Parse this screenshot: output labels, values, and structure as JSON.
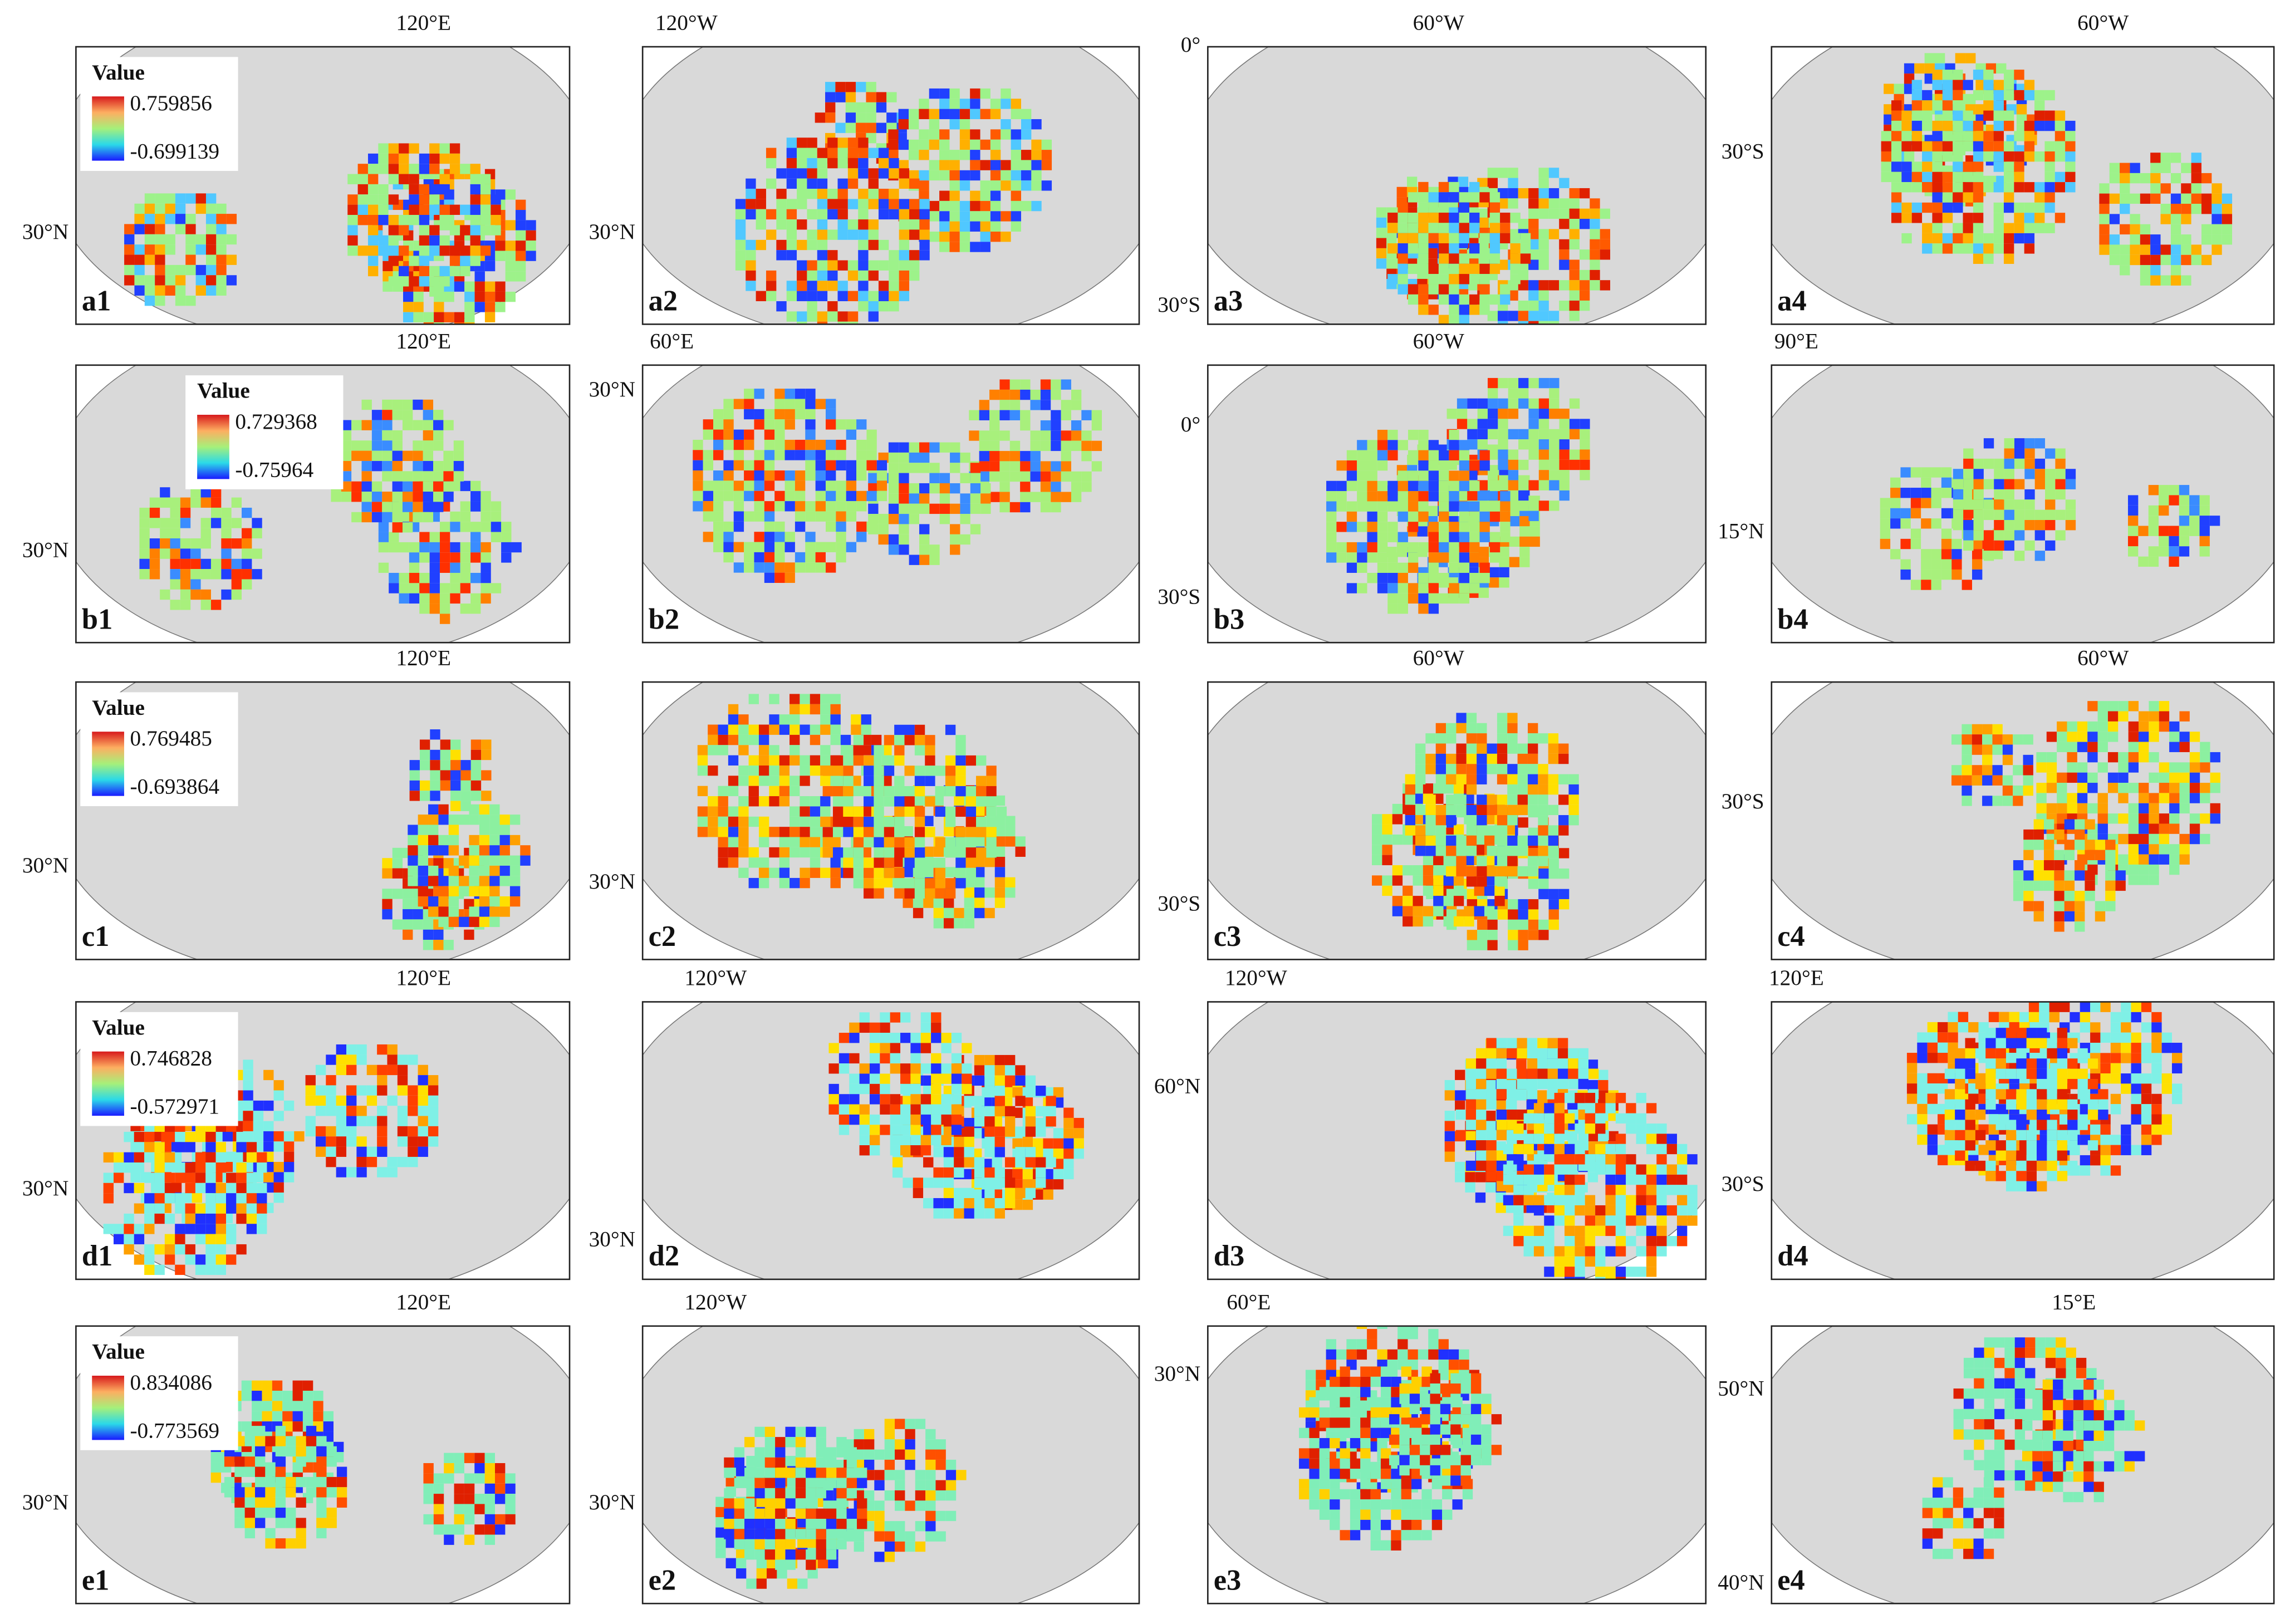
{
  "panels": [
    {
      "label": "a1",
      "top_label": "120°E",
      "side_labels": [
        "30°N"
      ],
      "legend": {
        "title": "Value",
        "max": "0.759856",
        "min": "-0.699139"
      }
    },
    {
      "label": "a2",
      "top_label": "120°W",
      "side_labels": [
        "30°N"
      ]
    },
    {
      "label": "a3",
      "top_label": "60°W",
      "side_labels": [
        "0°",
        "30°S"
      ]
    },
    {
      "label": "a4",
      "top_label": "60°W",
      "side_labels": [
        "30°S"
      ]
    },
    {
      "label": "b1",
      "top_label": "120°E",
      "side_labels": [
        "30°N"
      ],
      "legend": {
        "title": "Value",
        "max": "0.729368",
        "min": "-0.75964"
      }
    },
    {
      "label": "b2",
      "top_label": "60°E",
      "side_labels": [
        "30°N"
      ]
    },
    {
      "label": "b3",
      "top_label": "60°W",
      "side_labels": [
        "0°",
        "30°S"
      ]
    },
    {
      "label": "b4",
      "top_label": "90°E",
      "side_labels": [
        "15°N"
      ]
    },
    {
      "label": "c1",
      "top_label": "120°E",
      "side_labels": [
        "30°N"
      ],
      "legend": {
        "title": "Value",
        "max": "0.769485",
        "min": "-0.693864"
      }
    },
    {
      "label": "c2",
      "side_labels": [
        "30°N"
      ]
    },
    {
      "label": "c3",
      "top_label": "60°W",
      "side_labels": [
        "30°S"
      ]
    },
    {
      "label": "c4",
      "top_label": "60°W",
      "side_labels": [
        "30°S"
      ]
    },
    {
      "label": "d1",
      "top_label": "120°E",
      "side_labels": [
        "30°N"
      ],
      "legend": {
        "title": "Value",
        "max": "0.746828",
        "min": "-0.572971"
      }
    },
    {
      "label": "d2",
      "top_label": "120°W",
      "side_labels": [
        "30°N"
      ]
    },
    {
      "label": "d3",
      "top_label": "120°W",
      "side_labels": [
        "60°N"
      ]
    },
    {
      "label": "d4",
      "top_label": "120°E",
      "side_labels": [
        "30°S"
      ]
    },
    {
      "label": "e1",
      "top_label": "120°E",
      "side_labels": [
        "30°N"
      ],
      "legend": {
        "title": "Value",
        "max": "0.834086",
        "min": "-0.773569"
      }
    },
    {
      "label": "e2",
      "top_label": "120°W",
      "side_labels": [
        "30°N"
      ]
    },
    {
      "label": "e3",
      "top_label": "60°E",
      "side_labels": [
        "30°N"
      ]
    },
    {
      "label": "e4",
      "top_label": "15°E",
      "side_labels": [
        "50°N",
        "40°N"
      ]
    }
  ]
}
